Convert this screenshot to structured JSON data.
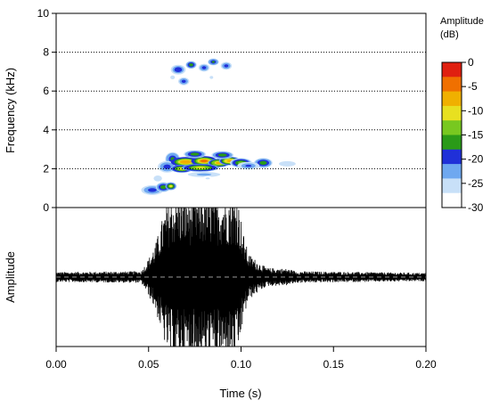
{
  "chart_data": {
    "type": "heatmap",
    "spectrogram": {
      "ylabel": "Frequency (kHz)",
      "ylim": [
        0,
        10
      ],
      "y_ticks": [
        "0",
        "2",
        "4",
        "6",
        "8",
        "10"
      ],
      "grid_lines_khz": [
        2,
        4,
        6,
        8
      ],
      "colorbar": {
        "title_line1": "Amplitude",
        "title_line2": "(dB)",
        "range_db": [
          -30,
          0
        ],
        "ticks": [
          "0",
          "-5",
          "-10",
          "-15",
          "-20",
          "-25",
          "-30"
        ],
        "colors": [
          "#ffffff",
          "#c8e0f8",
          "#6fa8f0",
          "#2030d8",
          "#2a9a18",
          "#78c820",
          "#e8e020",
          "#f0b000",
          "#f07000",
          "#e02010"
        ]
      },
      "blobs": [
        {
          "t": 0.052,
          "f": 0.9,
          "dt": 0.006,
          "df": 0.25,
          "db": -18
        },
        {
          "t": 0.058,
          "f": 1.05,
          "dt": 0.004,
          "df": 0.25,
          "db": -14
        },
        {
          "t": 0.062,
          "f": 1.1,
          "dt": 0.003,
          "df": 0.2,
          "db": -10
        },
        {
          "t": 0.063,
          "f": 2.5,
          "dt": 0.004,
          "df": 0.35,
          "db": -16
        },
        {
          "t": 0.06,
          "f": 2.1,
          "dt": 0.005,
          "df": 0.3,
          "db": -18
        },
        {
          "t": 0.07,
          "f": 2.35,
          "dt": 0.008,
          "df": 0.25,
          "db": -4
        },
        {
          "t": 0.068,
          "f": 2.0,
          "dt": 0.006,
          "df": 0.2,
          "db": -8
        },
        {
          "t": 0.08,
          "f": 2.4,
          "dt": 0.007,
          "df": 0.25,
          "db": -3
        },
        {
          "t": 0.088,
          "f": 2.3,
          "dt": 0.006,
          "df": 0.22,
          "db": -6
        },
        {
          "t": 0.094,
          "f": 2.4,
          "dt": 0.006,
          "df": 0.22,
          "db": -5
        },
        {
          "t": 0.078,
          "f": 2.05,
          "dt": 0.01,
          "df": 0.2,
          "db": -9
        },
        {
          "t": 0.09,
          "f": 2.7,
          "dt": 0.006,
          "df": 0.2,
          "db": -14
        },
        {
          "t": 0.075,
          "f": 2.75,
          "dt": 0.006,
          "df": 0.2,
          "db": -15
        },
        {
          "t": 0.1,
          "f": 2.3,
          "dt": 0.006,
          "df": 0.25,
          "db": -13
        },
        {
          "t": 0.112,
          "f": 2.3,
          "dt": 0.005,
          "df": 0.25,
          "db": -14
        },
        {
          "t": 0.104,
          "f": 2.15,
          "dt": 0.006,
          "df": 0.2,
          "db": -20
        },
        {
          "t": 0.125,
          "f": 2.25,
          "dt": 0.006,
          "df": 0.18,
          "db": -24
        },
        {
          "t": 0.134,
          "f": 2.2,
          "dt": 0.003,
          "df": 0.15,
          "db": -27
        },
        {
          "t": 0.066,
          "f": 7.1,
          "dt": 0.004,
          "df": 0.25,
          "db": -17
        },
        {
          "t": 0.073,
          "f": 7.35,
          "dt": 0.003,
          "df": 0.2,
          "db": -15
        },
        {
          "t": 0.08,
          "f": 7.2,
          "dt": 0.003,
          "df": 0.2,
          "db": -18
        },
        {
          "t": 0.085,
          "f": 7.5,
          "dt": 0.003,
          "df": 0.18,
          "db": -16
        },
        {
          "t": 0.092,
          "f": 7.3,
          "dt": 0.003,
          "df": 0.2,
          "db": -18
        },
        {
          "t": 0.069,
          "f": 6.5,
          "dt": 0.003,
          "df": 0.2,
          "db": -18
        },
        {
          "t": 0.063,
          "f": 6.7,
          "dt": 0.002,
          "df": 0.15,
          "db": -25
        },
        {
          "t": 0.058,
          "f": 5.3,
          "dt": 0.0015,
          "df": 0.2,
          "db": -28
        },
        {
          "t": 0.062,
          "f": 6.2,
          "dt": 0.0015,
          "df": 0.15,
          "db": -27
        },
        {
          "t": 0.084,
          "f": 6.7,
          "dt": 0.0015,
          "df": 0.12,
          "db": -25
        },
        {
          "t": 0.055,
          "f": 1.5,
          "dt": 0.003,
          "df": 0.2,
          "db": -24
        },
        {
          "t": 0.08,
          "f": 1.7,
          "dt": 0.01,
          "df": 0.15,
          "db": -22
        },
        {
          "t": 0.082,
          "f": 1.5,
          "dt": 0.003,
          "df": 0.12,
          "db": -26
        }
      ]
    },
    "waveform": {
      "ylabel": "Amplitude",
      "baseline": "dashed-grey",
      "envelope": [
        {
          "t": 0.0,
          "a": 0.06
        },
        {
          "t": 0.046,
          "a": 0.07
        },
        {
          "t": 0.05,
          "a": 0.22
        },
        {
          "t": 0.054,
          "a": 0.42
        },
        {
          "t": 0.058,
          "a": 0.75
        },
        {
          "t": 0.062,
          "a": 1.0
        },
        {
          "t": 0.068,
          "a": 1.0
        },
        {
          "t": 0.075,
          "a": 1.0
        },
        {
          "t": 0.085,
          "a": 1.0
        },
        {
          "t": 0.098,
          "a": 1.0
        },
        {
          "t": 0.101,
          "a": 0.55
        },
        {
          "t": 0.104,
          "a": 0.28
        },
        {
          "t": 0.11,
          "a": 0.17
        },
        {
          "t": 0.114,
          "a": 0.11
        },
        {
          "t": 0.125,
          "a": 0.1
        },
        {
          "t": 0.13,
          "a": 0.07
        },
        {
          "t": 0.2,
          "a": 0.05
        }
      ]
    },
    "xlabel": "Time (s)",
    "xlim": [
      0,
      0.2
    ],
    "x_ticks": [
      "0.00",
      "0.05",
      "0.10",
      "0.15",
      "0.20"
    ]
  }
}
